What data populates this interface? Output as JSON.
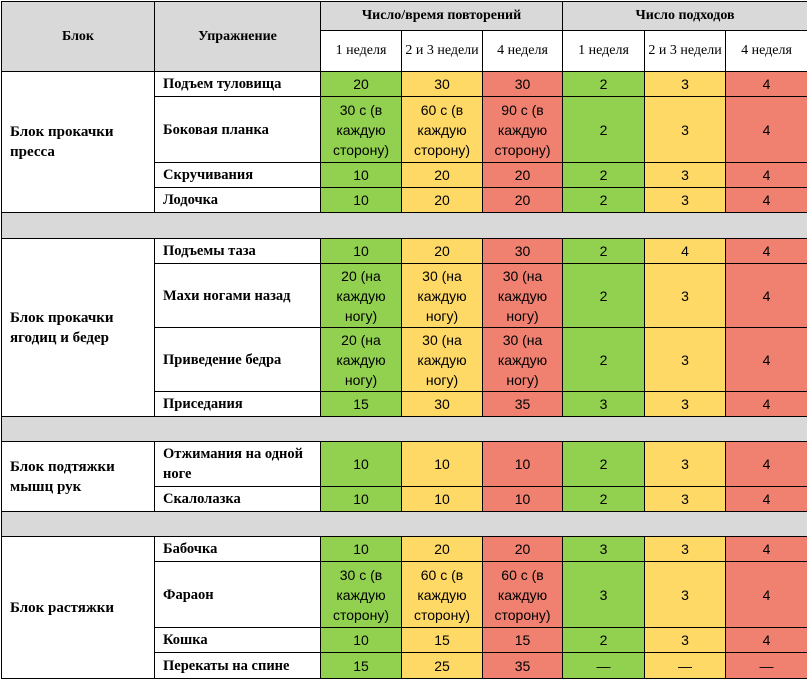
{
  "header": {
    "block": "Блок",
    "exercise": "Упражнение",
    "reps_group": "Число/время повторений",
    "sets_group": "Число подходов",
    "weeks": [
      "1 неделя",
      "2 и 3 недели",
      "4 неделя"
    ]
  },
  "colors": {
    "week1": "#92d050",
    "week23": "#ffd966",
    "week4": "#f08070",
    "separator": "#d9d9d9"
  },
  "blocks": [
    {
      "name": "Блок прокачки пресса",
      "rows": [
        {
          "exercise": "Подъем туловища",
          "reps": [
            "20",
            "30",
            "30"
          ],
          "sets": [
            "2",
            "3",
            "4"
          ]
        },
        {
          "exercise": "Боковая планка",
          "reps": [
            "30 с (в каждую сторону)",
            "60 с (в каждую сторону)",
            "90 с (в каждую сторону)"
          ],
          "sets": [
            "2",
            "3",
            "4"
          ]
        },
        {
          "exercise": "Скручивания",
          "reps": [
            "10",
            "20",
            "20"
          ],
          "sets": [
            "2",
            "3",
            "4"
          ]
        },
        {
          "exercise": "Лодочка",
          "reps": [
            "10",
            "20",
            "20"
          ],
          "sets": [
            "2",
            "3",
            "4"
          ]
        }
      ]
    },
    {
      "name": "Блок прокачки ягодиц и бедер",
      "rows": [
        {
          "exercise": "Подъемы таза",
          "reps": [
            "10",
            "20",
            "30"
          ],
          "sets": [
            "2",
            "4",
            "4"
          ]
        },
        {
          "exercise": "Махи ногами назад",
          "reps": [
            "20 (на каждую ногу)",
            "30 (на каждую ногу)",
            "30 (на каждую ногу)"
          ],
          "sets": [
            "2",
            "3",
            "4"
          ]
        },
        {
          "exercise": "Приведение бедра",
          "reps": [
            "20 (на каждую ногу)",
            "30 (на каждую ногу)",
            "30 (на каждую ногу)"
          ],
          "sets": [
            "2",
            "3",
            "4"
          ]
        },
        {
          "exercise": "Приседания",
          "reps": [
            "15",
            "30",
            "35"
          ],
          "sets": [
            "3",
            "3",
            "4"
          ]
        }
      ]
    },
    {
      "name": "Блок подтяжки мышц рук",
      "rows": [
        {
          "exercise": "Отжимания на одной ноге",
          "reps": [
            "10",
            "10",
            "10"
          ],
          "sets": [
            "2",
            "3",
            "4"
          ]
        },
        {
          "exercise": "Скалолазка",
          "reps": [
            "10",
            "10",
            "10"
          ],
          "sets": [
            "2",
            "3",
            "4"
          ]
        }
      ]
    },
    {
      "name": "Блок растяжки",
      "rows": [
        {
          "exercise": "Бабочка",
          "reps": [
            "10",
            "20",
            "20"
          ],
          "sets": [
            "3",
            "3",
            "4"
          ]
        },
        {
          "exercise": "Фараон",
          "reps": [
            "30 с (в каждую сторону)",
            "60 с (в каждую сторону)",
            "60 с (в каждую сторону)"
          ],
          "sets": [
            "3",
            "3",
            "4"
          ]
        },
        {
          "exercise": "Кошка",
          "reps": [
            "10",
            "15",
            "15"
          ],
          "sets": [
            "2",
            "3",
            "4"
          ]
        },
        {
          "exercise": "Перекаты на спине",
          "reps": [
            "15",
            "25",
            "35"
          ],
          "sets": [
            "—",
            "—",
            "—"
          ]
        }
      ]
    }
  ]
}
